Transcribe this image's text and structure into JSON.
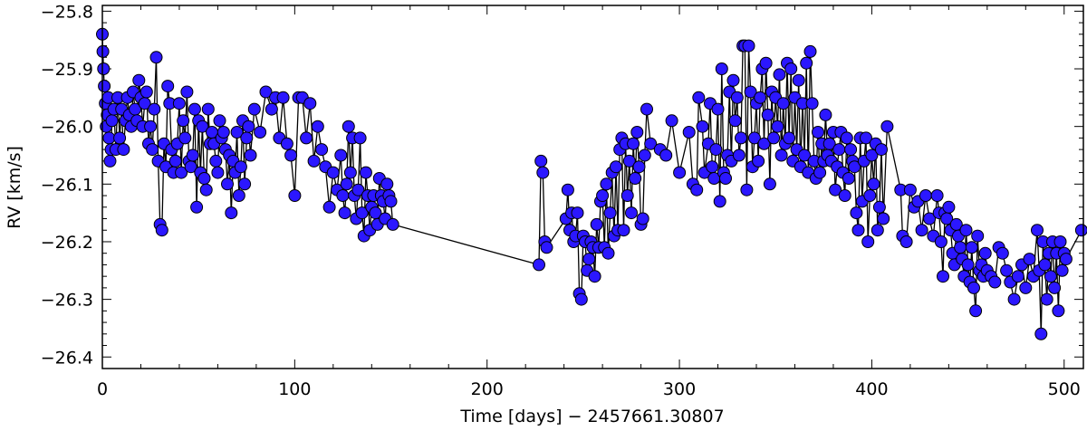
{
  "chart_data": {
    "type": "scatter",
    "title": "",
    "xlabel": "Time [days] − 2457661.30807",
    "ylabel": "RV [km/s]",
    "xlim": [
      0,
      510
    ],
    "ylim": [
      -26.42,
      -25.79
    ],
    "x_ticks": [
      0,
      100,
      200,
      300,
      400,
      500
    ],
    "x_tick_labels": [
      "0",
      "100",
      "200",
      "300",
      "400",
      "500"
    ],
    "y_ticks": [
      -25.8,
      -25.9,
      -26.0,
      -26.1,
      -26.2,
      -26.3,
      -26.4
    ],
    "y_tick_labels": [
      "−25.8",
      "−25.9",
      "−26.0",
      "−26.1",
      "−26.2",
      "−26.3",
      "−26.4"
    ],
    "grid": false,
    "legend": "none",
    "colors": {
      "marker": "#2b17ff",
      "line": "#000000"
    },
    "series": [
      {
        "marker": "circle",
        "connected": true,
        "x": [
          0,
          0.3,
          0.6,
          1,
          1.5,
          2,
          2.5,
          3,
          3.5,
          4,
          4.5,
          5,
          6,
          7,
          8,
          9,
          10,
          11,
          12,
          13,
          14,
          15,
          16,
          17,
          18,
          19,
          20,
          21,
          22,
          23,
          24,
          25,
          26,
          27,
          28,
          29,
          30,
          31,
          32,
          33,
          34,
          35,
          36,
          37,
          38,
          39,
          40,
          41,
          42,
          43,
          44,
          45,
          46,
          47,
          48,
          49,
          50,
          51,
          52,
          53,
          54,
          55,
          56,
          57,
          58,
          59,
          60,
          61,
          62,
          63,
          64,
          65,
          66,
          67,
          68,
          69,
          70,
          71,
          72,
          73,
          74,
          75,
          76,
          77,
          79,
          82,
          85,
          88,
          90,
          92,
          94,
          96,
          98,
          100,
          102,
          104,
          106,
          108,
          110,
          112,
          114,
          116,
          118,
          120,
          122,
          124,
          125,
          126,
          127,
          128,
          129,
          130,
          131,
          132,
          133,
          134,
          135,
          136,
          137,
          138,
          139,
          140,
          141,
          142,
          143,
          144,
          145,
          146,
          147,
          148,
          149,
          150,
          151,
          227,
          228,
          229,
          230,
          231,
          241,
          242,
          243,
          244,
          245,
          246,
          247,
          248,
          249,
          250,
          251,
          252,
          253,
          254,
          255,
          256,
          257,
          258,
          259,
          260,
          261,
          262,
          263,
          264,
          265,
          266,
          267,
          268,
          269,
          270,
          271,
          272,
          273,
          274,
          275,
          276,
          277,
          278,
          279,
          280,
          281,
          282,
          283,
          285,
          290,
          293,
          296,
          300,
          305,
          307,
          309,
          310,
          312,
          313,
          315,
          316,
          317,
          318,
          319,
          320,
          321,
          322,
          323,
          324,
          325,
          326,
          327,
          328,
          329,
          330,
          331,
          332,
          333,
          334,
          335,
          336,
          337,
          338,
          339,
          340,
          341,
          342,
          343,
          344,
          345,
          346,
          347,
          348,
          349,
          350,
          351,
          352,
          353,
          354,
          355,
          356,
          357,
          358,
          359,
          360,
          361,
          362,
          363,
          364,
          365,
          366,
          367,
          368,
          369,
          370,
          371,
          372,
          373,
          374,
          375,
          376,
          377,
          378,
          379,
          380,
          381,
          382,
          383,
          384,
          385,
          386,
          387,
          388,
          389,
          390,
          391,
          392,
          393,
          394,
          395,
          396,
          397,
          398,
          399,
          400,
          401,
          402,
          403,
          404,
          405,
          406,
          408,
          415,
          416,
          418,
          420,
          422,
          424,
          426,
          428,
          430,
          432,
          434,
          435,
          436,
          437,
          438,
          439,
          440,
          441,
          442,
          443,
          444,
          445,
          446,
          447,
          448,
          449,
          450,
          451,
          452,
          453,
          454,
          455,
          456,
          457,
          458,
          459,
          460,
          462,
          464,
          466,
          468,
          470,
          472,
          474,
          476,
          478,
          480,
          482,
          484,
          486,
          487,
          488,
          489,
          490,
          491,
          492,
          493,
          494,
          495,
          496,
          497,
          498,
          499,
          500,
          501,
          509
        ],
        "y": [
          -25.84,
          -25.87,
          -25.9,
          -25.93,
          -25.96,
          -26.0,
          -25.98,
          -25.95,
          -26.02,
          -26.06,
          -26.04,
          -25.99,
          -25.97,
          -26.04,
          -25.95,
          -26.02,
          -25.97,
          -26.04,
          -25.99,
          -25.95,
          -25.98,
          -26.0,
          -25.94,
          -25.97,
          -25.99,
          -25.92,
          -25.95,
          -26.0,
          -25.96,
          -25.94,
          -26.03,
          -26.0,
          -26.04,
          -25.97,
          -25.88,
          -26.06,
          -26.17,
          -26.18,
          -26.03,
          -26.07,
          -25.93,
          -25.96,
          -26.04,
          -26.08,
          -26.06,
          -26.03,
          -25.96,
          -26.08,
          -25.99,
          -26.02,
          -25.94,
          -26.06,
          -26.07,
          -26.05,
          -25.97,
          -26.14,
          -25.99,
          -26.08,
          -26.0,
          -26.09,
          -26.11,
          -25.97,
          -26.03,
          -26.01,
          -26.03,
          -26.06,
          -26.08,
          -25.99,
          -26.02,
          -26.01,
          -26.04,
          -26.1,
          -26.05,
          -26.15,
          -26.06,
          -26.08,
          -26.01,
          -26.12,
          -26.07,
          -25.99,
          -26.1,
          -26.02,
          -26.0,
          -26.05,
          -25.97,
          -26.01,
          -25.94,
          -25.97,
          -25.95,
          -26.02,
          -25.95,
          -26.03,
          -26.05,
          -26.12,
          -25.95,
          -25.95,
          -26.02,
          -25.96,
          -26.06,
          -26.0,
          -26.04,
          -26.07,
          -26.14,
          -26.08,
          -26.11,
          -26.05,
          -26.12,
          -26.15,
          -26.1,
          -26.0,
          -26.08,
          -26.02,
          -26.12,
          -26.16,
          -26.11,
          -26.02,
          -26.15,
          -26.19,
          -26.08,
          -26.12,
          -26.18,
          -26.14,
          -26.12,
          -26.15,
          -26.17,
          -26.09,
          -26.12,
          -26.13,
          -26.16,
          -26.1,
          -26.12,
          -26.13,
          -26.17,
          -26.24,
          -26.06,
          -26.08,
          -26.2,
          -26.21,
          -26.16,
          -26.11,
          -26.18,
          -26.15,
          -26.2,
          -26.19,
          -26.15,
          -26.29,
          -26.3,
          -26.19,
          -26.2,
          -26.25,
          -26.23,
          -26.2,
          -26.21,
          -26.26,
          -26.17,
          -26.21,
          -26.13,
          -26.12,
          -26.21,
          -26.1,
          -26.22,
          -26.15,
          -26.08,
          -26.19,
          -26.07,
          -26.18,
          -26.04,
          -26.02,
          -26.18,
          -26.03,
          -26.12,
          -26.06,
          -26.15,
          -26.03,
          -26.09,
          -26.01,
          -26.07,
          -26.17,
          -26.16,
          -26.05,
          -25.97,
          -26.03,
          -26.04,
          -26.05,
          -25.99,
          -26.08,
          -26.01,
          -26.1,
          -26.11,
          -25.95,
          -26.0,
          -26.08,
          -26.03,
          -25.96,
          -26.07,
          -26.09,
          -26.04,
          -25.97,
          -26.13,
          -25.9,
          -26.08,
          -26.09,
          -26.05,
          -25.94,
          -26.06,
          -25.92,
          -25.99,
          -25.95,
          -26.05,
          -26.02,
          -25.86,
          -25.86,
          -26.11,
          -25.86,
          -25.94,
          -26.07,
          -26.02,
          -25.96,
          -26.06,
          -25.95,
          -25.9,
          -26.03,
          -25.89,
          -25.98,
          -26.1,
          -25.94,
          -26.02,
          -25.95,
          -26.0,
          -25.91,
          -26.05,
          -25.96,
          -26.03,
          -25.89,
          -26.02,
          -25.9,
          -26.06,
          -25.95,
          -26.04,
          -25.92,
          -26.07,
          -25.96,
          -26.05,
          -25.89,
          -26.08,
          -25.87,
          -25.96,
          -26.06,
          -26.09,
          -26.01,
          -26.08,
          -26.03,
          -26.06,
          -25.98,
          -26.05,
          -26.03,
          -26.06,
          -26.01,
          -26.11,
          -26.07,
          -26.04,
          -26.01,
          -26.08,
          -26.12,
          -26.02,
          -26.09,
          -26.04,
          -26.06,
          -26.07,
          -26.15,
          -26.18,
          -26.02,
          -26.13,
          -26.06,
          -26.02,
          -26.2,
          -26.12,
          -26.05,
          -26.1,
          -26.03,
          -26.18,
          -26.14,
          -26.04,
          -26.16,
          -26.0,
          -26.11,
          -26.19,
          -26.2,
          -26.11,
          -26.14,
          -26.13,
          -26.18,
          -26.12,
          -26.16,
          -26.19,
          -26.12,
          -26.15,
          -26.2,
          -26.26,
          -26.15,
          -26.16,
          -26.14,
          -26.18,
          -26.22,
          -26.24,
          -26.17,
          -26.19,
          -26.21,
          -26.23,
          -26.26,
          -26.18,
          -26.24,
          -26.27,
          -26.21,
          -26.28,
          -26.32,
          -26.19,
          -26.25,
          -26.24,
          -26.26,
          -26.22,
          -26.25,
          -26.26,
          -26.27,
          -26.21,
          -26.22,
          -26.25,
          -26.27,
          -26.3,
          -26.26,
          -26.24,
          -26.28,
          -26.23,
          -26.26,
          -26.18,
          -26.25,
          -26.36,
          -26.2,
          -26.24,
          -26.3,
          -26.22,
          -26.26,
          -26.2,
          -26.28,
          -26.22,
          -26.32,
          -26.2,
          -26.25,
          -26.22,
          -26.23,
          -26.18
        ]
      }
    ]
  }
}
